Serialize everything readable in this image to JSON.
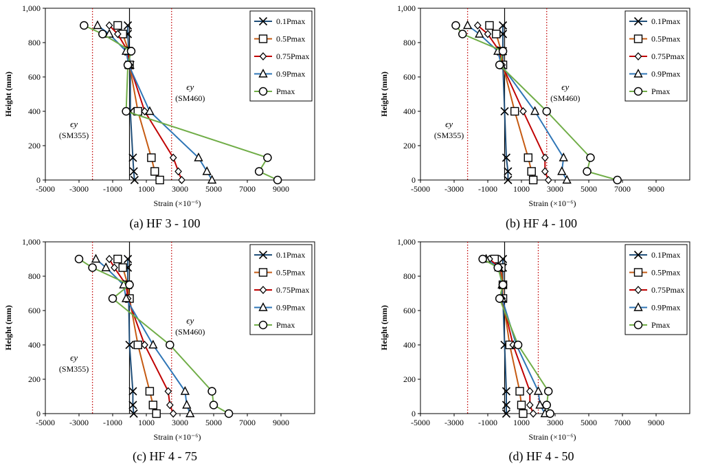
{
  "chart_data": [
    {
      "type": "line",
      "caption": "(a) HF 3 - 100",
      "xlabel": "Strain (×10⁻⁶)",
      "ylabel": "Height (mm)",
      "xlim": [
        -5000,
        11000
      ],
      "ylim": [
        0,
        1000
      ],
      "xticks": [
        "-5000",
        "-3000",
        "-1000",
        "1000",
        "3000",
        "5000",
        "7000",
        "9000"
      ],
      "yticks": [
        "0",
        "200",
        "400",
        "600",
        "800",
        "1,000"
      ],
      "legend_position": "top-right",
      "yield_lines": [
        {
          "x": -2200,
          "symbol": "ϵy",
          "label": "(SM355)",
          "side": "left"
        },
        {
          "x": 2500,
          "symbol": "ϵy",
          "label": "(SM460)",
          "side": "right"
        }
      ],
      "series": [
        {
          "name": "0.1Pmax",
          "x": [
            300,
            250,
            200,
            50,
            50,
            -50,
            -100,
            -100
          ],
          "y": [
            0,
            50,
            130,
            400,
            670,
            750,
            850,
            900
          ]
        },
        {
          "name": "0.5Pmax",
          "x": [
            1800,
            1500,
            1300,
            500,
            0,
            -50,
            -400,
            -700
          ],
          "y": [
            0,
            50,
            130,
            400,
            670,
            750,
            850,
            900
          ]
        },
        {
          "name": "0.75Pmax",
          "x": [
            3100,
            2900,
            2600,
            900,
            0,
            -100,
            -700,
            -1200
          ],
          "y": [
            0,
            50,
            130,
            400,
            670,
            750,
            850,
            900
          ]
        },
        {
          "name": "0.9Pmax",
          "x": [
            4900,
            4600,
            4100,
            1200,
            -50,
            -200,
            -1200,
            -1900
          ],
          "y": [
            0,
            50,
            130,
            400,
            670,
            750,
            850,
            900
          ]
        },
        {
          "name": "Pmax",
          "x": [
            8800,
            7700,
            8200,
            -200,
            -100,
            100,
            -1600,
            -2700
          ],
          "y": [
            0,
            50,
            130,
            400,
            670,
            750,
            850,
            900
          ]
        }
      ]
    },
    {
      "type": "line",
      "caption": "(b) HF 4 - 100",
      "xlabel": "Strain (×10⁻⁶)",
      "ylabel": "Height (mm)",
      "xlim": [
        -5000,
        11000
      ],
      "ylim": [
        0,
        1000
      ],
      "xticks": [
        "-5000",
        "-3000",
        "-1000",
        "1000",
        "3000",
        "5000",
        "7000",
        "9000"
      ],
      "yticks": [
        "0",
        "200",
        "400",
        "600",
        "800",
        "1,000"
      ],
      "legend_position": "top-right",
      "yield_lines": [
        {
          "x": -2200,
          "symbol": "ϵy",
          "label": "(SM355)",
          "side": "left"
        },
        {
          "x": 2500,
          "symbol": "ϵy",
          "label": "(SM460)",
          "side": "right"
        }
      ],
      "series": [
        {
          "name": "0.1Pmax",
          "x": [
            200,
            200,
            100,
            0,
            -100,
            -100,
            -100,
            -100
          ],
          "y": [
            0,
            50,
            130,
            400,
            670,
            750,
            850,
            900
          ]
        },
        {
          "name": "0.5Pmax",
          "x": [
            1700,
            1600,
            1400,
            600,
            -100,
            -200,
            -500,
            -900
          ],
          "y": [
            0,
            50,
            130,
            400,
            670,
            750,
            850,
            900
          ]
        },
        {
          "name": "0.75Pmax",
          "x": [
            2600,
            2400,
            2400,
            1100,
            -150,
            -300,
            -1000,
            -1600
          ],
          "y": [
            0,
            50,
            130,
            400,
            670,
            750,
            850,
            900
          ]
        },
        {
          "name": "0.9Pmax",
          "x": [
            3700,
            3400,
            3500,
            1800,
            -200,
            -400,
            -1500,
            -2200
          ],
          "y": [
            0,
            50,
            130,
            400,
            670,
            750,
            850,
            900
          ]
        },
        {
          "name": "Pmax",
          "x": [
            6700,
            4900,
            5100,
            2500,
            -300,
            -100,
            -2500,
            -2900
          ],
          "y": [
            0,
            50,
            130,
            400,
            670,
            750,
            850,
            900
          ]
        }
      ]
    },
    {
      "type": "line",
      "caption": "(c) HF 4 - 75",
      "xlabel": "Strain (×10⁻⁶)",
      "ylabel": "Height (mm)",
      "xlim": [
        -5000,
        11000
      ],
      "ylim": [
        0,
        1000
      ],
      "xticks": [
        "-5000",
        "-3000",
        "-1000",
        "1000",
        "3000",
        "5000",
        "7000",
        "9000"
      ],
      "yticks": [
        "0",
        "200",
        "400",
        "600",
        "800",
        "1,000"
      ],
      "legend_position": "top-right",
      "yield_lines": [
        {
          "x": -2200,
          "symbol": "ϵy",
          "label": "(SM355)",
          "side": "left"
        },
        {
          "x": 2500,
          "symbol": "ϵy",
          "label": "(SM460)",
          "side": "right"
        }
      ],
      "series": [
        {
          "name": "0.1Pmax",
          "x": [
            250,
            200,
            200,
            0,
            -50,
            -100,
            -100,
            -100
          ],
          "y": [
            0,
            50,
            130,
            400,
            670,
            750,
            850,
            900
          ]
        },
        {
          "name": "0.5Pmax",
          "x": [
            1600,
            1400,
            1200,
            500,
            0,
            -100,
            -400,
            -700
          ],
          "y": [
            0,
            50,
            130,
            400,
            670,
            750,
            850,
            900
          ]
        },
        {
          "name": "0.75Pmax",
          "x": [
            2600,
            2400,
            2300,
            900,
            -100,
            -200,
            -900,
            -1200
          ],
          "y": [
            0,
            50,
            130,
            400,
            670,
            750,
            850,
            900
          ]
        },
        {
          "name": "0.9Pmax",
          "x": [
            3600,
            3400,
            3300,
            1400,
            -200,
            -350,
            -1400,
            -2000
          ],
          "y": [
            0,
            50,
            130,
            400,
            670,
            750,
            850,
            900
          ]
        },
        {
          "name": "Pmax",
          "x": [
            5900,
            5000,
            4900,
            2400,
            -1000,
            0,
            -2200,
            -3000
          ],
          "y": [
            0,
            50,
            130,
            400,
            670,
            750,
            850,
            900
          ]
        }
      ]
    },
    {
      "type": "line",
      "caption": "(d) HF 4 - 50",
      "xlabel": "Strain (×10⁻⁶)",
      "ylabel": "Height (mm)",
      "xlim": [
        -5000,
        11000
      ],
      "ylim": [
        0,
        1000
      ],
      "xticks": [
        "-5000",
        "-3000",
        "-1000",
        "1000",
        "3000",
        "5000",
        "7000",
        "9000"
      ],
      "yticks": [
        "0",
        "200",
        "400",
        "600",
        "800",
        "1,000"
      ],
      "legend_position": "top-right",
      "yield_lines": [
        {
          "x": -2200,
          "symbol": "",
          "label": "",
          "side": "left"
        },
        {
          "x": 2000,
          "symbol": "",
          "label": "",
          "side": "right"
        }
      ],
      "series": [
        {
          "name": "0.1Pmax",
          "x": [
            100,
            100,
            100,
            0,
            -100,
            -100,
            -100,
            -100
          ],
          "y": [
            0,
            50,
            130,
            400,
            670,
            750,
            850,
            900
          ]
        },
        {
          "name": "0.5Pmax",
          "x": [
            1100,
            1000,
            900,
            300,
            -100,
            -100,
            -200,
            -600
          ],
          "y": [
            0,
            50,
            130,
            400,
            670,
            750,
            850,
            900
          ]
        },
        {
          "name": "0.75Pmax",
          "x": [
            1700,
            1500,
            1500,
            500,
            -150,
            -150,
            -300,
            -900
          ],
          "y": [
            0,
            50,
            130,
            400,
            670,
            750,
            850,
            900
          ]
        },
        {
          "name": "0.9Pmax",
          "x": [
            2400,
            2100,
            2000,
            700,
            -150,
            -150,
            -350,
            -1100
          ],
          "y": [
            0,
            50,
            130,
            400,
            670,
            750,
            850,
            900
          ]
        },
        {
          "name": "Pmax",
          "x": [
            2700,
            2500,
            2600,
            800,
            -300,
            -100,
            -400,
            -1300
          ],
          "y": [
            0,
            50,
            130,
            400,
            670,
            750,
            850,
            900
          ]
        }
      ]
    }
  ],
  "style": {
    "series_colors": [
      "#1f4e79",
      "#c55a11",
      "#c00000",
      "#2e75b6",
      "#70ad47"
    ],
    "series_markers": [
      "x",
      "square",
      "diamond",
      "triangle",
      "circle"
    ],
    "yield_line_color": "#c00000"
  }
}
